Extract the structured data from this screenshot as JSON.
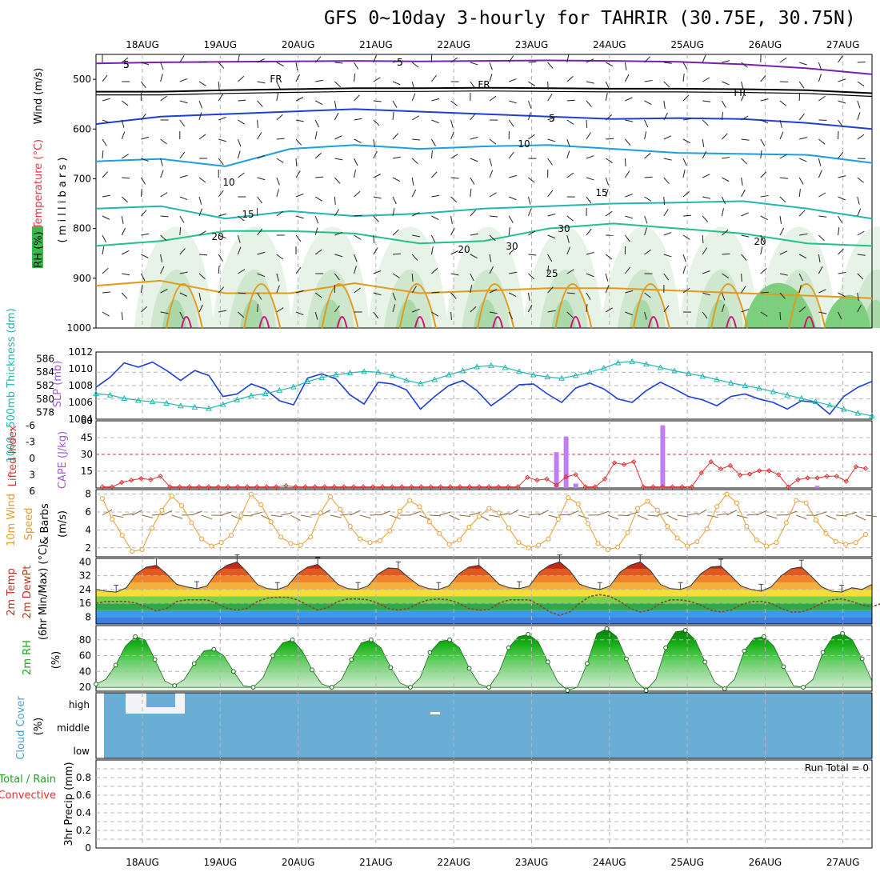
{
  "title": "GFS 0~10day 3-hourly for TAHRIR (30.75E, 30.75N)",
  "colors": {
    "grid": "#b4b4b4",
    "temp_purple": "#7a1fb0",
    "freezing": "#000000",
    "blue": "#1c3fd6",
    "cyan": "#1aa0e0",
    "teal": "#21b7b0",
    "green": "#22c08a",
    "orange": "#e39a1c",
    "magenta": "#d0107a",
    "cloud": "#6aaed6",
    "cape": "#c07ef0",
    "lifted": "#e03030",
    "wind": "#e89a2c",
    "rh": "#18a818"
  },
  "chart_data": {
    "type": "meteogram",
    "dates": [
      "18AUG",
      "19AUG",
      "20AUG",
      "21AUG",
      "22AUG",
      "23AUG",
      "24AUG",
      "25AUG",
      "26AUG",
      "27AUG"
    ],
    "panels": [
      {
        "id": "upper_air",
        "ylabel_parts": [
          "Wind (m/s)",
          "Temperature (°C)",
          "RH (%)",
          "( m i l l i b a r s )"
        ],
        "yticks": [
          "500",
          "600",
          "700",
          "800",
          "900",
          "1000"
        ],
        "ylim": [
          450,
          1000
        ],
        "isotherm_labels": [
          "5",
          "FR",
          "5",
          "10",
          "15",
          "20",
          "25",
          "30"
        ],
        "isotherms": [
          {
            "name": "-5",
            "color_key": "temp_purple",
            "levels": [
              468,
              466,
              465,
              464,
              463,
              464,
              463,
              462,
              463,
              465,
              470,
              478,
              490
            ]
          },
          {
            "name": "FR",
            "color_key": "freezing",
            "levels": [
              525,
              525,
              522,
              520,
              518,
              518,
              517,
              518,
              519,
              519,
              520,
              522,
              528
            ]
          },
          {
            "name": "5",
            "color_key": "blue",
            "levels": [
              590,
              575,
              570,
              565,
              560,
              565,
              570,
              575,
              580,
              578,
              580,
              588,
              600
            ]
          },
          {
            "name": "10",
            "color_key": "cyan",
            "levels": [
              665,
              660,
              675,
              640,
              632,
              640,
              635,
              632,
              640,
              648,
              650,
              652,
              668
            ]
          },
          {
            "name": "15",
            "color_key": "teal",
            "levels": [
              760,
              755,
              780,
              765,
              775,
              770,
              760,
              755,
              750,
              748,
              745,
              760,
              780
            ]
          },
          {
            "name": "20",
            "color_key": "green",
            "levels": [
              835,
              825,
              805,
              805,
              810,
              830,
              825,
              800,
              790,
              800,
              810,
              830,
              835
            ]
          },
          {
            "name": "25",
            "color_key": "orange",
            "levels": [
              915,
              905,
              930,
              930,
              910,
              930,
              925,
              920,
              920,
              925,
              930,
              935,
              940
            ]
          }
        ]
      },
      {
        "id": "thickness_slp",
        "ylabel_left": "1000~500mb Thickness (dm)",
        "ylabel_right": "SLP (mb)",
        "yticks_left": [
          "586",
          "584",
          "582",
          "580",
          "578"
        ],
        "yticks_right": [
          "1012",
          "1010",
          "1008",
          "1006",
          "1004"
        ],
        "ylim_thickness": [
          577,
          587
        ],
        "ylim_slp": [
          1004,
          1012
        ],
        "slp": [
          1007.8,
          1009.0,
          1010.7,
          1010.2,
          1010.8,
          1009.8,
          1008.6,
          1009.8,
          1009.2,
          1006.7,
          1007.0,
          1008.2,
          1007.6,
          1006.2,
          1005.7,
          1008.9,
          1009.4,
          1008.8,
          1006.9,
          1005.8,
          1008.4,
          1008.2,
          1007.5,
          1005.2,
          1006.7,
          1008.0,
          1008.6,
          1007.4,
          1005.6,
          1006.8,
          1008.1,
          1008.2,
          1007.0,
          1006.0,
          1007.7,
          1008.3,
          1007.6,
          1006.4,
          1006.0,
          1007.4,
          1008.4,
          1007.6,
          1006.7,
          1006.3,
          1005.6,
          1006.7,
          1007.0,
          1006.4,
          1006.0,
          1005.2,
          1006.2,
          1006.0,
          1004.6,
          1006.7,
          1007.8,
          1008.5
        ],
        "thickness": [
          580.8,
          580.6,
          580.1,
          579.8,
          579.6,
          579.4,
          579.0,
          578.8,
          578.6,
          579.2,
          579.9,
          580.5,
          580.8,
          581.3,
          581.8,
          582.6,
          583.2,
          583.6,
          583.9,
          584.1,
          584.0,
          583.5,
          582.8,
          582.3,
          582.9,
          583.6,
          584.2,
          584.8,
          585.0,
          584.7,
          584.1,
          583.6,
          583.3,
          583.1,
          583.5,
          584.0,
          584.6,
          585.4,
          585.6,
          585.2,
          584.7,
          584.2,
          583.8,
          583.4,
          582.9,
          582.4,
          582.0,
          581.6,
          581.1,
          580.6,
          580.1,
          579.6,
          579.1,
          578.5,
          577.9,
          577.5
        ]
      },
      {
        "id": "cape_li",
        "ylabel_left": "Lifted Index",
        "ylabel_right": "CAPE (J/kg)",
        "yticks_left": [
          "-6",
          "-3",
          "0",
          "3",
          "6"
        ],
        "yticks_right": [
          "60",
          "45",
          "30",
          "15"
        ],
        "ylim_cape": [
          0,
          60
        ],
        "cape": [
          0,
          0,
          0,
          0,
          0,
          0,
          0,
          0,
          0,
          0,
          0,
          0,
          0,
          0,
          0,
          0,
          0,
          0,
          0,
          0,
          0,
          0,
          0,
          0,
          0,
          0,
          0,
          0,
          0,
          0,
          0,
          0,
          0,
          0,
          0,
          0,
          0,
          0,
          0,
          0,
          0,
          0,
          0,
          0,
          0,
          0,
          0,
          32,
          46,
          4,
          0,
          0,
          0,
          0,
          0,
          0,
          0,
          0,
          56,
          0,
          0,
          0,
          0,
          0,
          0,
          0,
          0,
          0,
          0,
          0,
          0,
          0,
          0,
          0,
          2,
          0,
          0,
          0,
          0,
          0
        ],
        "lifted_index": [
          5.8,
          5.8,
          5.0,
          4.6,
          4.3,
          4.5,
          3.9,
          5.8,
          5.8,
          5.8,
          5.8,
          5.8,
          5.8,
          5.8,
          5.8,
          5.8,
          5.8,
          5.8,
          5.8,
          5.6,
          5.8,
          5.8,
          5.8,
          5.8,
          5.8,
          5.8,
          5.8,
          5.8,
          5.8,
          5.8,
          5.8,
          5.8,
          5.8,
          5.8,
          5.8,
          5.8,
          5.8,
          5.8,
          5.8,
          5.8,
          5.8,
          5.8,
          5.8,
          5.8,
          4.1,
          4.6,
          4.4,
          5.5,
          4.0,
          3.6,
          5.8,
          5.8,
          4.4,
          1.5,
          1.8,
          1.3,
          5.8,
          5.8,
          5.8,
          5.8,
          5.8,
          5.8,
          3.3,
          1.3,
          2.6,
          2.0,
          3.7,
          3.5,
          2.9,
          2.9,
          3.6,
          5.8,
          4.5,
          4.2,
          4.2,
          3.9,
          3.9,
          4.8,
          2.2,
          2.5
        ]
      },
      {
        "id": "wind10m",
        "ylabel_left": "10m Wind Speed & Barbs",
        "ylabel_right": "(m/s)",
        "yticks": [
          "8",
          "6",
          "4",
          "2"
        ],
        "ylim": [
          1,
          8.5
        ],
        "speed": [
          7.5,
          5.2,
          3.4,
          1.6,
          1.8,
          4.2,
          6.2,
          7.8,
          6.7,
          4.8,
          3.0,
          2.2,
          2.6,
          3.4,
          5.6,
          8.0,
          6.8,
          4.9,
          3.2,
          2.5,
          2.3,
          3.2,
          5.9,
          7.7,
          6.3,
          4.4,
          3.0,
          2.6,
          2.8,
          3.9,
          6.1,
          7.3,
          6.6,
          4.9,
          3.6,
          2.4,
          2.9,
          4.3,
          5.5,
          6.4,
          5.9,
          4.2,
          2.6,
          2.0,
          2.3,
          3.0,
          5.2,
          7.6,
          6.9,
          4.7,
          2.5,
          1.8,
          2.1,
          3.7,
          6.4,
          7.2,
          6.2,
          4.4,
          3.1,
          2.2,
          2.7,
          4.1,
          6.6,
          8.0,
          7.0,
          4.4,
          2.9,
          2.2,
          2.6,
          4.8,
          7.3,
          7.0,
          5.1,
          3.6,
          2.7,
          2.4,
          2.6,
          3.5
        ]
      },
      {
        "id": "t2m",
        "ylabel_left": "2m Temp",
        "ylabel_mid": "2m DewPt",
        "ylabel_right": "(6hr Min/Max) (°C)",
        "yticks": [
          "40",
          "32",
          "24",
          "16",
          "8"
        ],
        "ylim": [
          4,
          42
        ],
        "temp": [
          24,
          23,
          22.5,
          25,
          33,
          37,
          38,
          33,
          27,
          25.5,
          24.5,
          26,
          34,
          38,
          40,
          34,
          27,
          24.5,
          24,
          26,
          33,
          37,
          38.5,
          33,
          27,
          24.5,
          24,
          26,
          33,
          36.5,
          36,
          31,
          26.5,
          24.5,
          24,
          26,
          33,
          37,
          38,
          33,
          27,
          25,
          24.5,
          26,
          34,
          38,
          40,
          35,
          27,
          25,
          24,
          26,
          34,
          38,
          40,
          35,
          27,
          24.5,
          24,
          26,
          33,
          37,
          37.5,
          32,
          26,
          24,
          23,
          25.5,
          32,
          36,
          37,
          31.5,
          25.5,
          23,
          22.5,
          25,
          24,
          27
        ],
        "dewpt": [
          16,
          17,
          17,
          17,
          16,
          14,
          11.5,
          13,
          17,
          18,
          18,
          18,
          16,
          13,
          12,
          13,
          17,
          19,
          19.5,
          19.5,
          18,
          15,
          12,
          13.5,
          17,
          18.5,
          18.5,
          18,
          16,
          13,
          12,
          13,
          16,
          18,
          18.5,
          18,
          16,
          13,
          12,
          12.5,
          16,
          18,
          18,
          18,
          15,
          11,
          9,
          11,
          16,
          20,
          21,
          20,
          17,
          13,
          11,
          12,
          16,
          18,
          18,
          17,
          15,
          12,
          11,
          12,
          15,
          17,
          17,
          16,
          13,
          11,
          11,
          13,
          16,
          18,
          18.5,
          17,
          15,
          14,
          16,
          17
        ]
      },
      {
        "id": "rh2m",
        "ylabel_left": "2m RH",
        "ylabel_right": "(%)",
        "yticks": [
          "80",
          "60",
          "40",
          "20"
        ],
        "ylim": [
          15,
          98
        ],
        "rh": [
          24,
          30,
          48,
          72,
          84,
          80,
          55,
          28,
          22,
          30,
          50,
          66,
          68,
          60,
          40,
          22,
          20,
          32,
          60,
          76,
          80,
          66,
          42,
          24,
          20,
          30,
          55,
          76,
          80,
          70,
          45,
          25,
          20,
          32,
          64,
          78,
          80,
          70,
          44,
          24,
          20,
          38,
          70,
          84,
          87,
          78,
          52,
          27,
          16,
          20,
          50,
          88,
          94,
          84,
          56,
          28,
          16,
          30,
          70,
          90,
          92,
          80,
          52,
          26,
          18,
          30,
          66,
          82,
          84,
          72,
          46,
          22,
          20,
          30,
          64,
          84,
          88,
          80,
          56,
          28
        ]
      },
      {
        "id": "cloud",
        "ylabel_left": "Cloud Cover",
        "ylabel_right": "(%)",
        "levels": [
          "high",
          "middle",
          "low"
        ]
      },
      {
        "id": "precip",
        "ylabel_left": "Total / Rain",
        "ylabel_sub": "Convective",
        "ylabel_right": "3hr Precip (mm)",
        "yticks": [
          "0.8",
          "0.6",
          "0.4",
          "0.2",
          "0"
        ],
        "ylim": [
          0,
          1
        ],
        "run_total_text": "Run Total = 0",
        "precip": []
      }
    ]
  }
}
